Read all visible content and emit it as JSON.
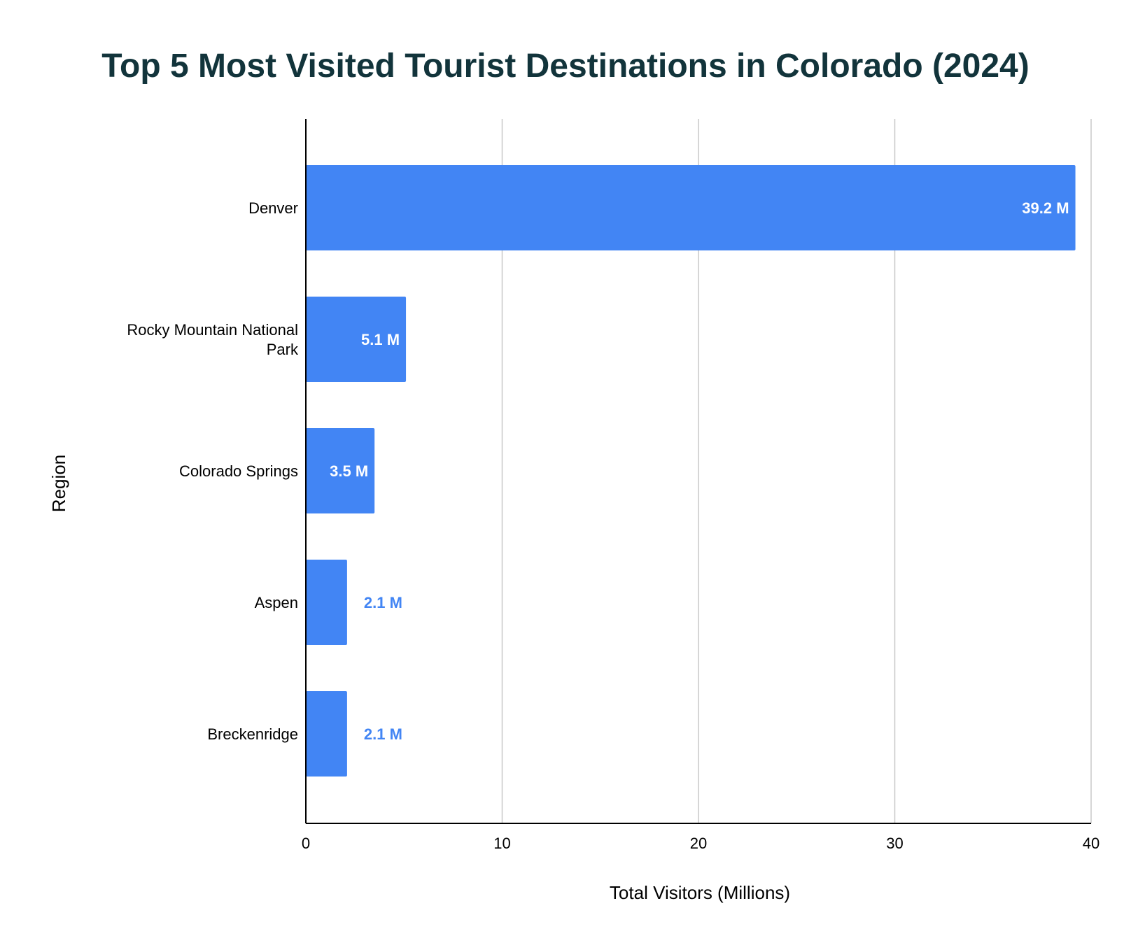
{
  "chart_data": {
    "type": "bar",
    "orientation": "horizontal",
    "title": "Top 5 Most Visited Tourist Destinations in Colorado (2024)",
    "xlabel": "Total Visitors (Millions)",
    "ylabel": "Region",
    "xlim": [
      0,
      40
    ],
    "x_ticks": [
      "0",
      "10",
      "20",
      "30",
      "40"
    ],
    "grid": true,
    "categories": [
      [
        "Denver"
      ],
      [
        "Rocky Mountain National",
        "Park"
      ],
      [
        "Colorado Springs"
      ],
      [
        "Aspen"
      ],
      [
        "Breckenridge"
      ]
    ],
    "values": [
      39.2,
      5.1,
      3.5,
      2.1,
      2.1
    ],
    "data_labels": [
      "39.2 M",
      "5.1 M",
      "3.5 M",
      "2.1 M",
      "2.1 M"
    ],
    "colors": {
      "bar": "#4285f4",
      "label_inside": "#ffffff",
      "label_outside": "#4285f4",
      "title": "#12343b"
    }
  }
}
